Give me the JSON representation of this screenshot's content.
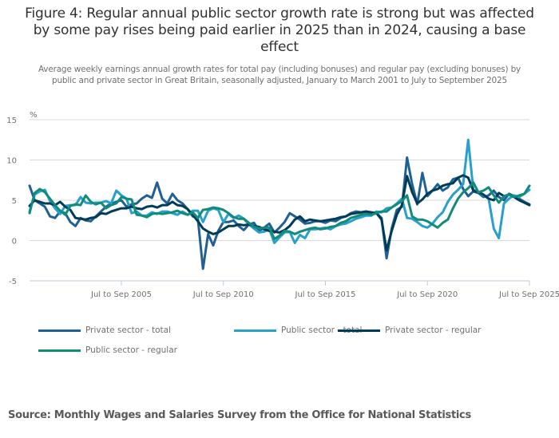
{
  "title": "Figure 4: Regular annual public sector growth rate is strong but was affected by some pay rises being paid earlier in 2025 than in 2024, causing a base effect",
  "subtitle": "Average weekly earnings annual growth rates for total pay (including bonuses) and regular pay (excluding bonuses) by public and private sector in Great Britain, seasonally adjusted, January to March 2001 to July to September 2025",
  "source": "Source: Monthly Wages and Salaries Survey from the Office for National Statistics",
  "chart_data": {
    "type": "line",
    "title": "Figure 4: Regular annual public sector growth rate is strong but was affected by some pay rises being paid earlier in 2025 than in 2024, causing a base effect",
    "xlabel": "",
    "ylabel": "%",
    "ylim": [
      -5,
      15
    ],
    "yticks": [
      15,
      10,
      5,
      0,
      -5
    ],
    "x_start": "Jan to Mar 2001",
    "x_end": "Jul to Sep 2025",
    "x_step": "quarterly (every 3 months of rolling 3-month periods)",
    "xticks": [
      {
        "label": "Jul to Sep 2005",
        "month_index": 54
      },
      {
        "label": "Jul to Sep 2010",
        "month_index": 114
      },
      {
        "label": "Jul to Sep 2015",
        "month_index": 174
      },
      {
        "label": "Jul to Sep 2020",
        "month_index": 234
      },
      {
        "label": "Jul to Sep 2025",
        "month_index": 294
      }
    ],
    "grid": true,
    "legend_position": "bottom",
    "series": [
      {
        "name": "Private sector - total",
        "color": "#206095",
        "values": [
          6.8,
          5.0,
          4.6,
          4.2,
          3.0,
          2.8,
          3.6,
          3.4,
          2.3,
          1.8,
          2.8,
          2.5,
          2.4,
          3.0,
          3.6,
          4.2,
          4.6,
          4.8,
          5.0,
          4.2,
          4.5,
          4.6,
          5.2,
          5.6,
          5.3,
          7.2,
          5.2,
          4.6,
          5.8,
          5.0,
          4.6,
          3.9,
          3.0,
          2.7,
          -3.5,
          0.8,
          -0.6,
          1.2,
          2.3,
          2.3,
          2.5,
          1.8,
          1.3,
          2.0,
          2.2,
          1.2,
          1.6,
          2.1,
          1.0,
          1.6,
          2.3,
          3.4,
          3.0,
          2.6,
          2.1,
          2.2,
          2.4,
          2.4,
          2.2,
          2.5,
          2.4,
          2.8,
          3.0,
          3.4,
          3.6,
          3.5,
          3.6,
          3.2,
          3.4,
          2.8,
          -2.2,
          1.5,
          3.8,
          4.2,
          10.3,
          7.0,
          4.5,
          8.4,
          5.5,
          6.2,
          7.0,
          6.2,
          6.6,
          7.6,
          7.8,
          6.4,
          5.5,
          6.1,
          5.9,
          5.4,
          5.6,
          6.2,
          5.4,
          5.0,
          5.8,
          5.5,
          5.2,
          4.8,
          4.5
        ]
      },
      {
        "name": "Public sector - total",
        "color": "#27a0cc",
        "values": [
          3.6,
          5.7,
          6.1,
          6.3,
          4.9,
          4.0,
          3.3,
          4.3,
          4.4,
          4.4,
          5.4,
          4.7,
          4.6,
          4.7,
          4.7,
          4.9,
          4.6,
          6.2,
          5.6,
          5.2,
          3.4,
          3.6,
          3.1,
          3.1,
          3.5,
          3.3,
          3.6,
          3.6,
          3.4,
          3.2,
          3.6,
          3.2,
          3.7,
          3.7,
          2.3,
          3.7,
          4.0,
          3.8,
          2.3,
          3.3,
          2.8,
          3.1,
          2.7,
          2.0,
          1.5,
          1.0,
          1.1,
          1.4,
          -0.3,
          0.4,
          1.0,
          1.1,
          -0.3,
          0.7,
          0.3,
          1.4,
          1.4,
          1.5,
          1.6,
          1.4,
          1.8,
          2.0,
          2.1,
          2.4,
          2.7,
          2.9,
          3.1,
          3.1,
          3.6,
          3.5,
          4.0,
          4.1,
          4.6,
          5.2,
          2.8,
          2.7,
          2.3,
          1.8,
          1.6,
          2.1,
          2.9,
          3.5,
          4.8,
          5.7,
          6.3,
          7.0,
          12.5,
          6.3,
          6.0,
          5.6,
          5.2,
          1.5,
          0.3,
          4.6,
          5.2,
          5.6,
          5.4,
          5.8,
          6.3
        ]
      },
      {
        "name": "Private sector - regular",
        "color": "#003c57",
        "values": [
          4.3,
          5.0,
          4.8,
          4.6,
          4.6,
          4.4,
          4.8,
          4.2,
          3.8,
          2.8,
          2.7,
          2.6,
          2.8,
          2.9,
          3.4,
          3.3,
          3.6,
          3.8,
          4.0,
          4.0,
          4.2,
          4.0,
          3.9,
          4.2,
          4.3,
          4.1,
          4.4,
          4.4,
          4.8,
          4.4,
          4.3,
          3.9,
          3.2,
          2.4,
          1.5,
          1.1,
          0.8,
          1.0,
          1.4,
          1.8,
          1.8,
          2.0,
          1.9,
          2.0,
          1.8,
          1.7,
          1.4,
          1.2,
          1.1,
          1.0,
          1.3,
          1.8,
          2.6,
          3.0,
          2.4,
          2.6,
          2.5,
          2.4,
          2.5,
          2.6,
          2.7,
          2.9,
          3.0,
          3.3,
          3.4,
          3.5,
          3.6,
          3.5,
          3.4,
          2.6,
          -1.2,
          1.2,
          3.2,
          4.4,
          8.0,
          6.0,
          4.6,
          5.1,
          5.8,
          6.2,
          6.4,
          6.8,
          7.0,
          7.1,
          7.8,
          8.1,
          7.8,
          6.2,
          6.0,
          5.7,
          5.2,
          5.0,
          5.9,
          5.5,
          5.7,
          5.4,
          5.0,
          4.7,
          4.4
        ]
      },
      {
        "name": "Public sector - regular",
        "color": "#118c7b",
        "values": [
          3.4,
          5.9,
          6.4,
          6.0,
          5.2,
          4.4,
          3.7,
          3.2,
          4.3,
          4.5,
          4.4,
          5.6,
          4.8,
          4.5,
          4.7,
          4.0,
          4.4,
          4.6,
          5.4,
          5.2,
          5.1,
          3.2,
          3.1,
          2.9,
          3.3,
          3.4,
          3.3,
          3.4,
          3.5,
          3.7,
          3.4,
          3.2,
          3.5,
          2.8,
          3.8,
          3.9,
          4.1,
          4.0,
          3.8,
          3.4,
          2.9,
          2.7,
          2.7,
          2.2,
          1.7,
          1.5,
          1.6,
          1.6,
          0.2,
          0.6,
          1.2,
          1.1,
          0.8,
          1.1,
          1.3,
          1.5,
          1.6,
          1.4,
          1.5,
          1.7,
          1.8,
          2.2,
          2.4,
          2.8,
          3.0,
          3.2,
          3.3,
          3.2,
          3.4,
          3.6,
          3.6,
          4.1,
          4.5,
          4.9,
          5.6,
          3.0,
          2.6,
          2.6,
          2.4,
          2.0,
          1.6,
          2.2,
          2.6,
          4.0,
          5.2,
          6.0,
          6.5,
          7.2,
          6.0,
          6.2,
          6.6,
          5.6,
          4.7,
          5.5,
          5.7,
          5.4,
          5.6,
          5.8,
          6.8
        ]
      }
    ]
  }
}
